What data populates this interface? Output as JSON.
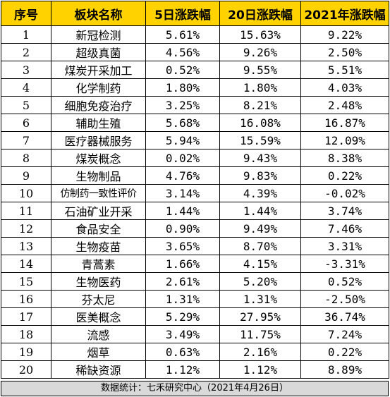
{
  "table": {
    "headers": [
      "序号",
      "板块名称",
      "5日涨跌幅",
      "20日涨跌幅",
      "2021年涨跌幅"
    ],
    "rows": [
      [
        "1",
        "新冠检测",
        "5.61%",
        "15.63%",
        "9.22%"
      ],
      [
        "2",
        "超级真菌",
        "4.56%",
        "9.26%",
        "2.50%"
      ],
      [
        "3",
        "煤炭开采加工",
        "0.52%",
        "9.55%",
        "5.51%"
      ],
      [
        "4",
        "化学制药",
        "1.80%",
        "1.80%",
        "4.03%"
      ],
      [
        "5",
        "细胞免疫治疗",
        "3.25%",
        "8.21%",
        "2.48%"
      ],
      [
        "6",
        "辅助生殖",
        "5.68%",
        "16.08%",
        "16.87%"
      ],
      [
        "7",
        "医疗器械服务",
        "5.94%",
        "15.59%",
        "12.09%"
      ],
      [
        "8",
        "煤炭概念",
        "0.02%",
        "9.43%",
        "8.38%"
      ],
      [
        "9",
        "生物制品",
        "4.76%",
        "9.83%",
        "0.22%"
      ],
      [
        "10",
        "仿制药一致性评价",
        "3.14%",
        "4.39%",
        "-0.02%"
      ],
      [
        "11",
        "石油矿业开采",
        "1.44%",
        "1.44%",
        "3.74%"
      ],
      [
        "12",
        "食品安全",
        "0.90%",
        "9.49%",
        "7.46%"
      ],
      [
        "13",
        "生物疫苗",
        "3.65%",
        "8.70%",
        "3.31%"
      ],
      [
        "14",
        "青蒿素",
        "1.66%",
        "4.15%",
        "-3.31%"
      ],
      [
        "15",
        "生物医药",
        "2.61%",
        "5.20%",
        "0.52%"
      ],
      [
        "16",
        "芬太尼",
        "1.31%",
        "1.31%",
        "-2.50%"
      ],
      [
        "17",
        "医美概念",
        "5.29%",
        "27.95%",
        "36.74%"
      ],
      [
        "18",
        "流感",
        "3.49%",
        "11.75%",
        "7.24%"
      ],
      [
        "19",
        "烟草",
        "0.63%",
        "2.16%",
        "0.22%"
      ],
      [
        "20",
        "稀缺资源",
        "1.12%",
        "1.12%",
        "8.89%"
      ]
    ]
  },
  "footer": "数据统计：七禾研究中心（2021年4月26日）",
  "colors": {
    "header_bg": "#ffd200",
    "footer_bg": "#d9d9d9",
    "border": "#000000"
  }
}
